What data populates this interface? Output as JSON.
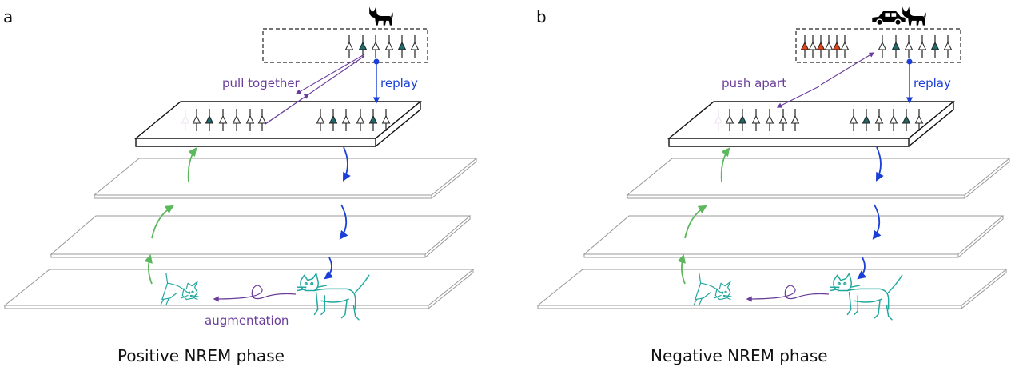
{
  "panels": [
    {
      "id": "a",
      "panel_letter": "a",
      "caption": "Positive NREM phase",
      "top_label": "pull together",
      "replay_label": "replay",
      "aug_label": "augmentation",
      "top_icons": [
        "cat-icon"
      ],
      "green_arrow_color": "#5cb85c",
      "blue_arrow_color": "#1a3fd6",
      "purple_color": "#6a3d9a",
      "neuron_fill": "#1d6b6b",
      "cat_color": "#23a8a0"
    },
    {
      "id": "b",
      "panel_letter": "b",
      "caption": "Negative NREM phase",
      "top_label": "push apart",
      "replay_label": "replay",
      "aug_label": "",
      "top_icons": [
        "car-icon",
        "cat-icon"
      ],
      "green_arrow_color": "#5cb85c",
      "blue_arrow_color": "#1a3fd6",
      "purple_color": "#6a3d9a",
      "neuron_fill": "#1d6b6b",
      "orange_neuron_fill": "#e0461a",
      "cat_color": "#23a8a0"
    }
  ]
}
